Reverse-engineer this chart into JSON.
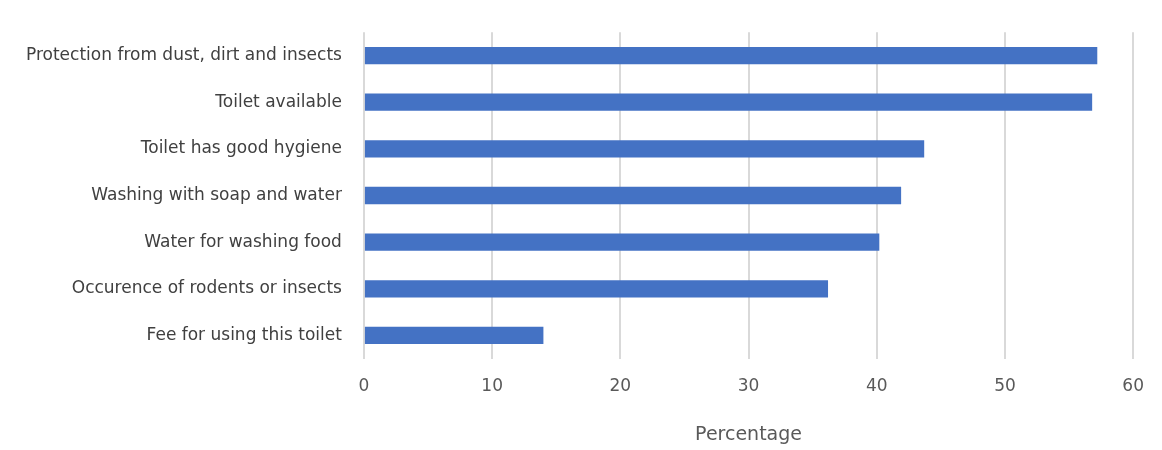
{
  "chart_data": {
    "type": "bar",
    "orientation": "horizontal",
    "xlabel": "Percentage",
    "categories": [
      "Protection from dust, dirt and insects",
      "Toilet available",
      "Toilet has good hygiene",
      "Washing with soap and water",
      "Water for washing food",
      "Occurence of rodents or insects",
      "Fee for using this toilet"
    ],
    "values": [
      57.2,
      56.8,
      43.7,
      41.9,
      40.2,
      36.2,
      14.0
    ],
    "color": "#4472c4",
    "xlim": [
      0,
      60
    ],
    "xticks": [
      0,
      10,
      20,
      30,
      40,
      50,
      60
    ],
    "grid": "x"
  }
}
